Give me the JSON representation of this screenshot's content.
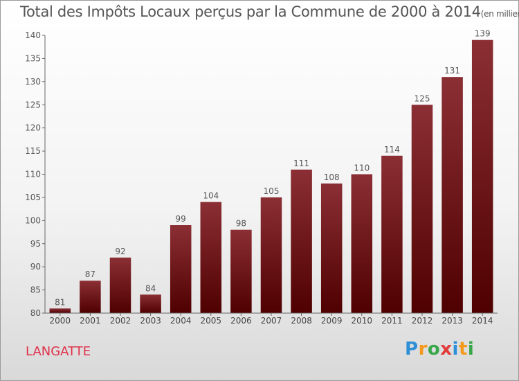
{
  "header": {
    "title": "Total des Impôts Locaux perçus par la Commune de 2000 à 2014",
    "unit": "(en milliers d'€)"
  },
  "footer": {
    "commune": "LANGATTE",
    "logo": [
      "P",
      "r",
      "o",
      "x",
      "i",
      "t",
      "i"
    ],
    "logo_colors": [
      "#2e8fd6",
      "#f39a1e",
      "#3aa64a",
      "#e23b3b",
      "#2e8fd6",
      "#f39a1e",
      "#3aa64a"
    ]
  },
  "chart_data": {
    "type": "bar",
    "title": "Total des Impôts Locaux perçus par la Commune de 2000 à 2014",
    "unit": "(en milliers d'€)",
    "categories": [
      "2000",
      "2001",
      "2002",
      "2003",
      "2004",
      "2005",
      "2006",
      "2007",
      "2008",
      "2009",
      "2010",
      "2011",
      "2012",
      "2013",
      "2014"
    ],
    "values": [
      81,
      87,
      92,
      84,
      99,
      104,
      98,
      105,
      111,
      108,
      110,
      114,
      125,
      131,
      139
    ],
    "ylim": [
      80,
      140
    ],
    "yticks": [
      80,
      85,
      90,
      95,
      100,
      105,
      110,
      115,
      120,
      125,
      130,
      135,
      140
    ],
    "xlabel": "",
    "ylabel": "",
    "grid": false,
    "legend": "none",
    "bar_color_top": "#8b2f35",
    "bar_color_bottom": "#4f0000"
  }
}
